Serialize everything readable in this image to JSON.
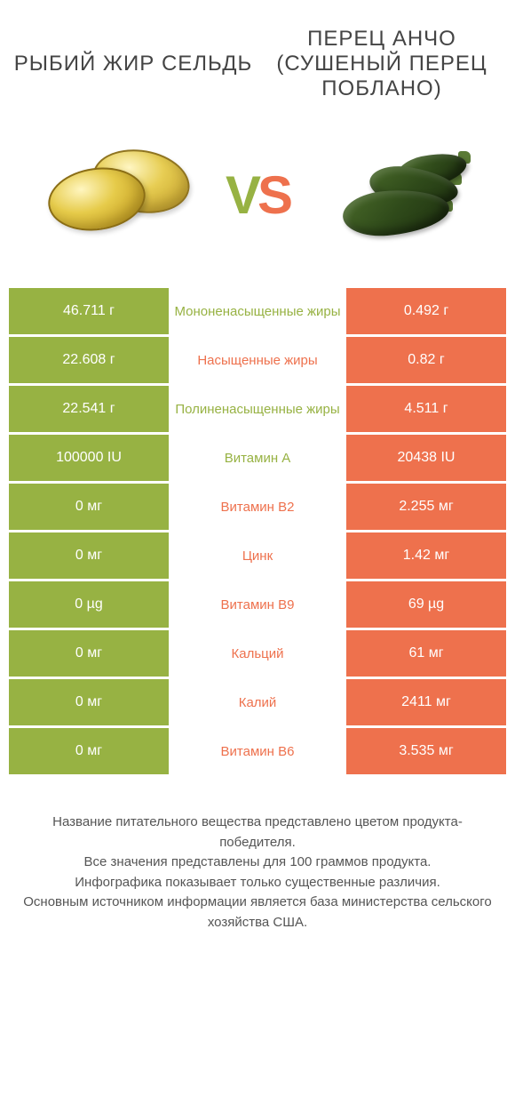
{
  "colors": {
    "left": "#97b243",
    "right": "#ee714d",
    "vs_v": "#97b243",
    "vs_s": "#ee714d",
    "bg": "#ffffff"
  },
  "header": {
    "left_title": "РЫБИЙ ЖИР СЕЛЬДЬ",
    "right_title": "ПЕРЕЦ АНЧО (СУШЕНЫЙ ПЕРЕЦ ПОБЛАНО)"
  },
  "vs": {
    "v_char": "V",
    "s_char": "S"
  },
  "rows": [
    {
      "left": "46.711 г",
      "label": "Мононенасыщенные жиры",
      "right": "0.492 г",
      "winner": "left"
    },
    {
      "left": "22.608 г",
      "label": "Насыщенные жиры",
      "right": "0.82 г",
      "winner": "right"
    },
    {
      "left": "22.541 г",
      "label": "Полиненасыщенные жиры",
      "right": "4.511 г",
      "winner": "left"
    },
    {
      "left": "100000 IU",
      "label": "Витамин A",
      "right": "20438 IU",
      "winner": "left"
    },
    {
      "left": "0 мг",
      "label": "Витамин B2",
      "right": "2.255 мг",
      "winner": "right"
    },
    {
      "left": "0 мг",
      "label": "Цинк",
      "right": "1.42 мг",
      "winner": "right"
    },
    {
      "left": "0 µg",
      "label": "Витамин B9",
      "right": "69 µg",
      "winner": "right"
    },
    {
      "left": "0 мг",
      "label": "Кальций",
      "right": "61 мг",
      "winner": "right"
    },
    {
      "left": "0 мг",
      "label": "Калий",
      "right": "2411 мг",
      "winner": "right"
    },
    {
      "left": "0 мг",
      "label": "Витамин B6",
      "right": "3.535 мг",
      "winner": "right"
    }
  ],
  "footer": {
    "line1": "Название питательного вещества представлено цветом продукта-победителя.",
    "line2": "Все значения представлены для 100 граммов продукта.",
    "line3": "Инфографика показывает только существенные различия.",
    "line4": "Основным источником информации является база министерства сельского хозяйства США."
  }
}
